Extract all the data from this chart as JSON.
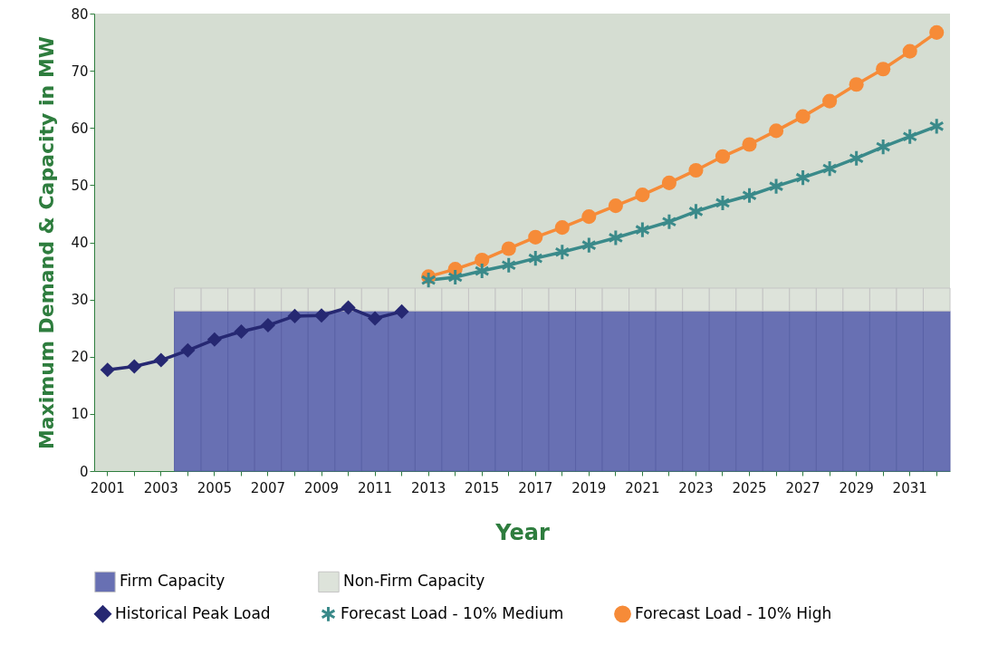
{
  "chart_data": {
    "type": "line",
    "xlabel": "Year",
    "ylabel": "Maximum Demand & Capacity in MW",
    "categories": [
      "2001",
      null,
      "2003",
      null,
      "2005",
      null,
      "2007",
      null,
      "2009",
      null,
      "2011",
      null,
      "2013",
      null,
      "2015",
      null,
      "2017",
      null,
      "2019",
      null,
      "2021",
      null,
      "2023",
      null,
      "2025",
      null,
      "2027",
      null,
      "2029",
      null,
      "2031",
      null
    ],
    "ylim": [
      0,
      80
    ],
    "yticks": [
      0,
      10,
      20,
      30,
      40,
      50,
      60,
      70,
      80
    ],
    "stacked": true,
    "legend": "bottom",
    "series": [
      {
        "name": "Firm Capacity",
        "type": "bar",
        "color": "#6870b3",
        "values": [
          null,
          null,
          null,
          28,
          28,
          28,
          28,
          28,
          28,
          28,
          28,
          28,
          28,
          28,
          28,
          28,
          28,
          28,
          28,
          28,
          28,
          28,
          28,
          28,
          28,
          28,
          28,
          28,
          28,
          28,
          28,
          28
        ]
      },
      {
        "name": "Non-Firm Capacity",
        "type": "bar",
        "color": "#dde3da",
        "values": [
          null,
          null,
          null,
          4,
          4,
          4,
          4,
          4,
          4,
          4,
          4,
          4,
          4,
          4,
          4,
          4,
          4,
          4,
          4,
          4,
          4,
          4,
          4,
          4,
          4,
          4,
          4,
          4,
          4,
          4,
          4,
          4
        ]
      },
      {
        "name": "Historical Peak Load",
        "color": "#262872",
        "marker": "diamond",
        "values": [
          17.7,
          18.3,
          19.4,
          21.1,
          23.0,
          24.4,
          25.5,
          27.1,
          27.2,
          28.6,
          26.7,
          27.9,
          null,
          null,
          null,
          null,
          null,
          null,
          null,
          null,
          null,
          null,
          null,
          null,
          null,
          null,
          null,
          null,
          null,
          null,
          null,
          null
        ]
      },
      {
        "name": "Forecast Load - 10% Medium",
        "color": "#3a8a8a",
        "marker": "cross",
        "values": [
          null,
          null,
          null,
          null,
          null,
          null,
          null,
          null,
          null,
          null,
          null,
          null,
          33.4,
          33.9,
          35.0,
          36.0,
          37.2,
          38.3,
          39.5,
          40.8,
          42.2,
          43.6,
          45.4,
          46.9,
          48.2,
          49.8,
          51.3,
          52.9,
          54.7,
          56.7,
          58.5,
          60.3
        ]
      },
      {
        "name": "Forecast Load - 10% High",
        "color": "#f68b38",
        "marker": "circle",
        "values": [
          null,
          null,
          null,
          null,
          null,
          null,
          null,
          null,
          null,
          null,
          null,
          null,
          34.0,
          35.3,
          36.9,
          38.9,
          40.9,
          42.6,
          44.5,
          46.4,
          48.3,
          50.4,
          52.6,
          55.0,
          57.1,
          59.5,
          62.0,
          64.7,
          67.6,
          70.3,
          73.4,
          76.7
        ]
      }
    ]
  }
}
